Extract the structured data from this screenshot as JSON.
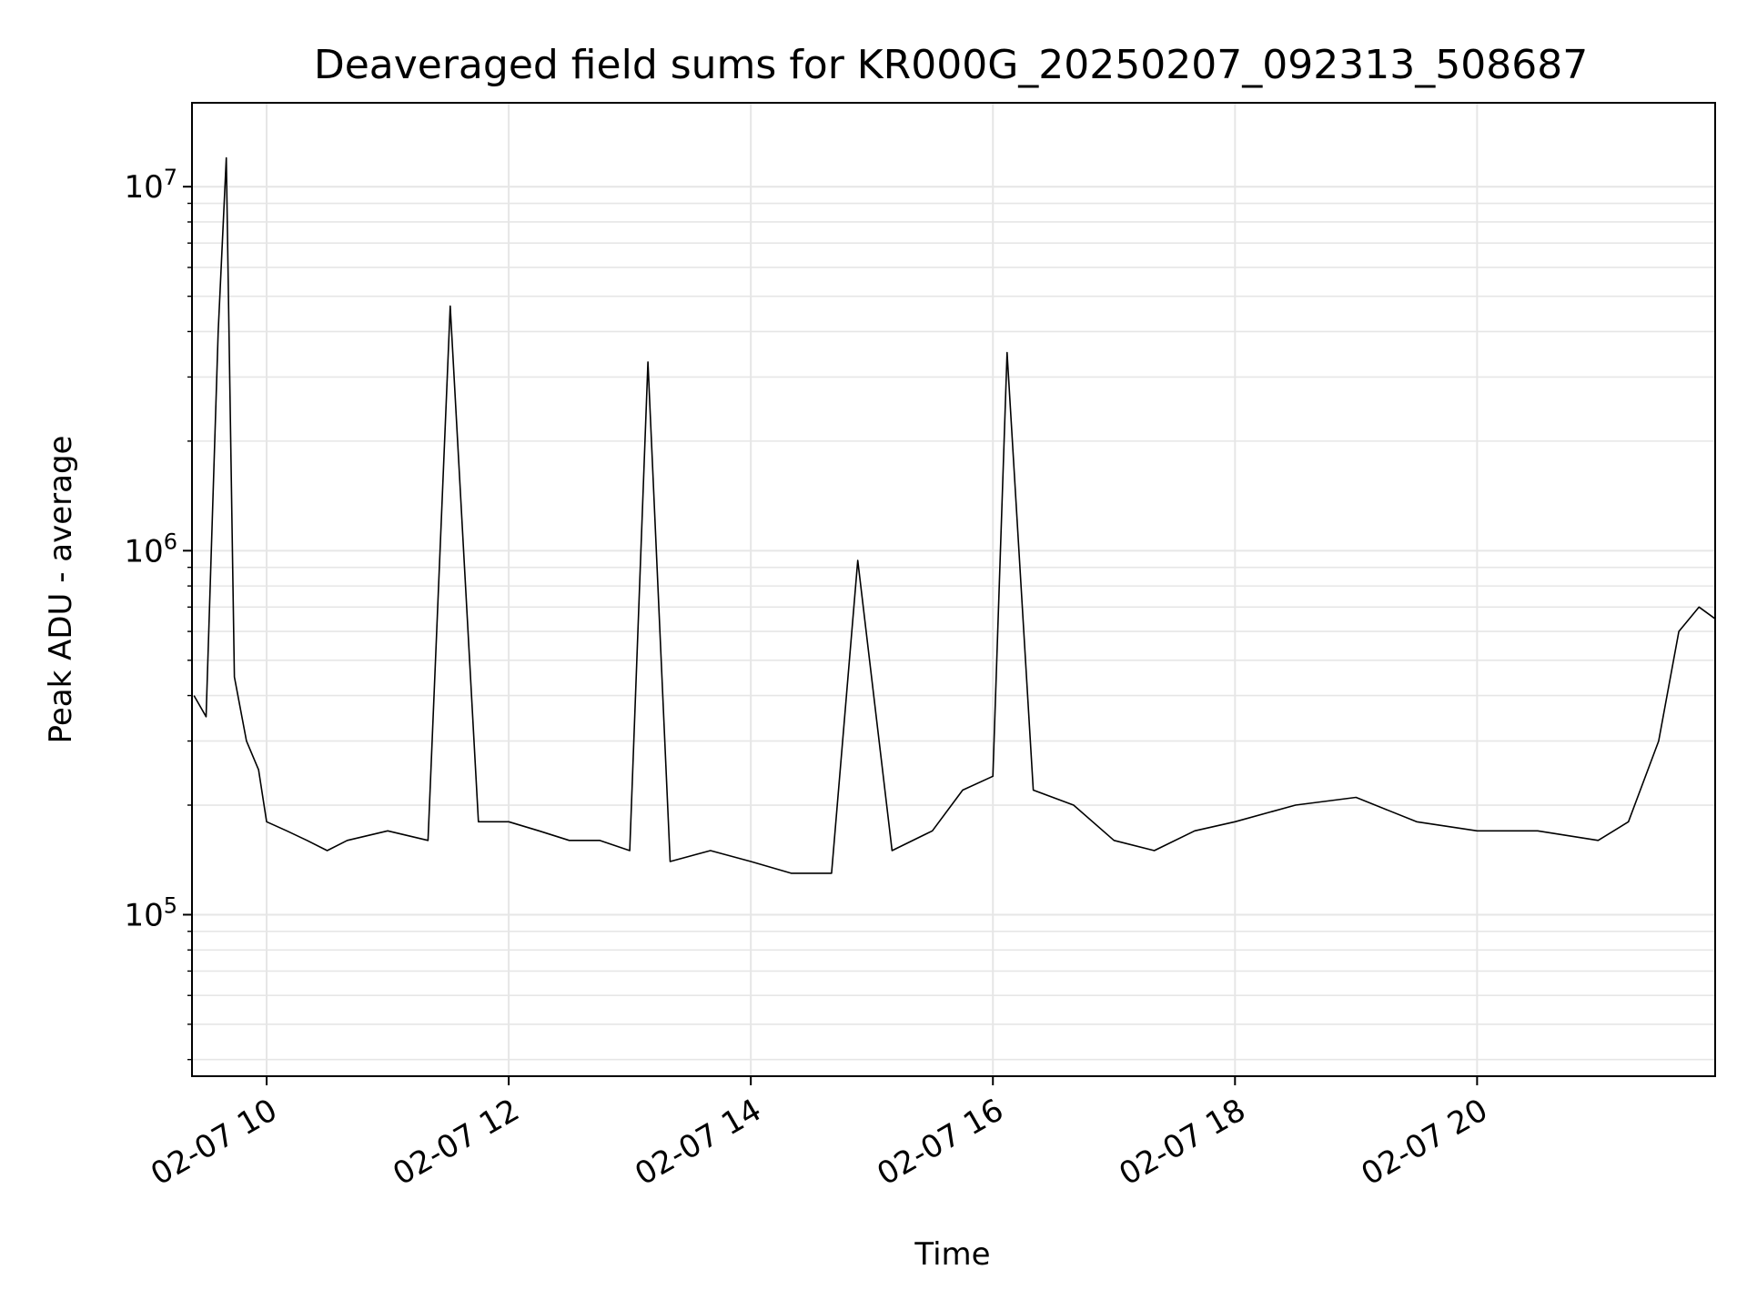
{
  "chart_data": {
    "type": "line",
    "title": "Deaveraged field sums for KR000G_20250207_092313_508687",
    "xlabel": "Time",
    "ylabel": "Peak ADU - average",
    "yscale": "log",
    "ylim": [
      36000,
      17000000
    ],
    "xlim": [
      "2025-02-07 09:23",
      "2025-02-07 21:58"
    ],
    "grid": true,
    "x_tick_labels": [
      "02-07 10",
      "02-07 12",
      "02-07 14",
      "02-07 16",
      "02-07 18",
      "02-07 20"
    ],
    "x_tick_times": [
      "2025-02-07 10:00",
      "2025-02-07 12:00",
      "2025-02-07 14:00",
      "2025-02-07 16:00",
      "2025-02-07 18:00",
      "2025-02-07 20:00"
    ],
    "y_tick_labels": [
      {
        "base": "10",
        "exp": "5",
        "value": 100000
      },
      {
        "base": "10",
        "exp": "6",
        "value": 1000000
      },
      {
        "base": "10",
        "exp": "7",
        "value": 10000000
      }
    ],
    "series": [
      {
        "color": "#000000",
        "x": [
          "2025-02-07 09:24",
          "2025-02-07 09:30",
          "2025-02-07 09:36",
          "2025-02-07 09:40",
          "2025-02-07 09:44",
          "2025-02-07 09:50",
          "2025-02-07 09:56",
          "2025-02-07 10:00",
          "2025-02-07 10:10",
          "2025-02-07 10:20",
          "2025-02-07 10:30",
          "2025-02-07 10:40",
          "2025-02-07 11:00",
          "2025-02-07 11:20",
          "2025-02-07 11:31",
          "2025-02-07 11:45",
          "2025-02-07 12:00",
          "2025-02-07 12:15",
          "2025-02-07 12:30",
          "2025-02-07 12:45",
          "2025-02-07 13:00",
          "2025-02-07 13:09",
          "2025-02-07 13:20",
          "2025-02-07 13:40",
          "2025-02-07 14:00",
          "2025-02-07 14:20",
          "2025-02-07 14:40",
          "2025-02-07 14:53",
          "2025-02-07 15:10",
          "2025-02-07 15:30",
          "2025-02-07 15:45",
          "2025-02-07 16:00",
          "2025-02-07 16:07",
          "2025-02-07 16:20",
          "2025-02-07 16:40",
          "2025-02-07 17:00",
          "2025-02-07 17:20",
          "2025-02-07 17:40",
          "2025-02-07 18:00",
          "2025-02-07 18:30",
          "2025-02-07 19:00",
          "2025-02-07 19:30",
          "2025-02-07 20:00",
          "2025-02-07 20:30",
          "2025-02-07 21:00",
          "2025-02-07 21:15",
          "2025-02-07 21:30",
          "2025-02-07 21:40",
          "2025-02-07 21:50",
          "2025-02-07 21:58"
        ],
        "y": [
          400000,
          350000,
          4000000,
          12000000,
          450000,
          300000,
          250000,
          180000,
          170000,
          160000,
          150000,
          160000,
          170000,
          160000,
          4700000,
          180000,
          180000,
          170000,
          160000,
          160000,
          150000,
          3300000,
          140000,
          150000,
          140000,
          130000,
          130000,
          940000,
          150000,
          170000,
          220000,
          240000,
          3500000,
          220000,
          200000,
          160000,
          150000,
          170000,
          180000,
          200000,
          210000,
          180000,
          170000,
          170000,
          160000,
          180000,
          300000,
          600000,
          700000,
          650000
        ]
      }
    ]
  }
}
